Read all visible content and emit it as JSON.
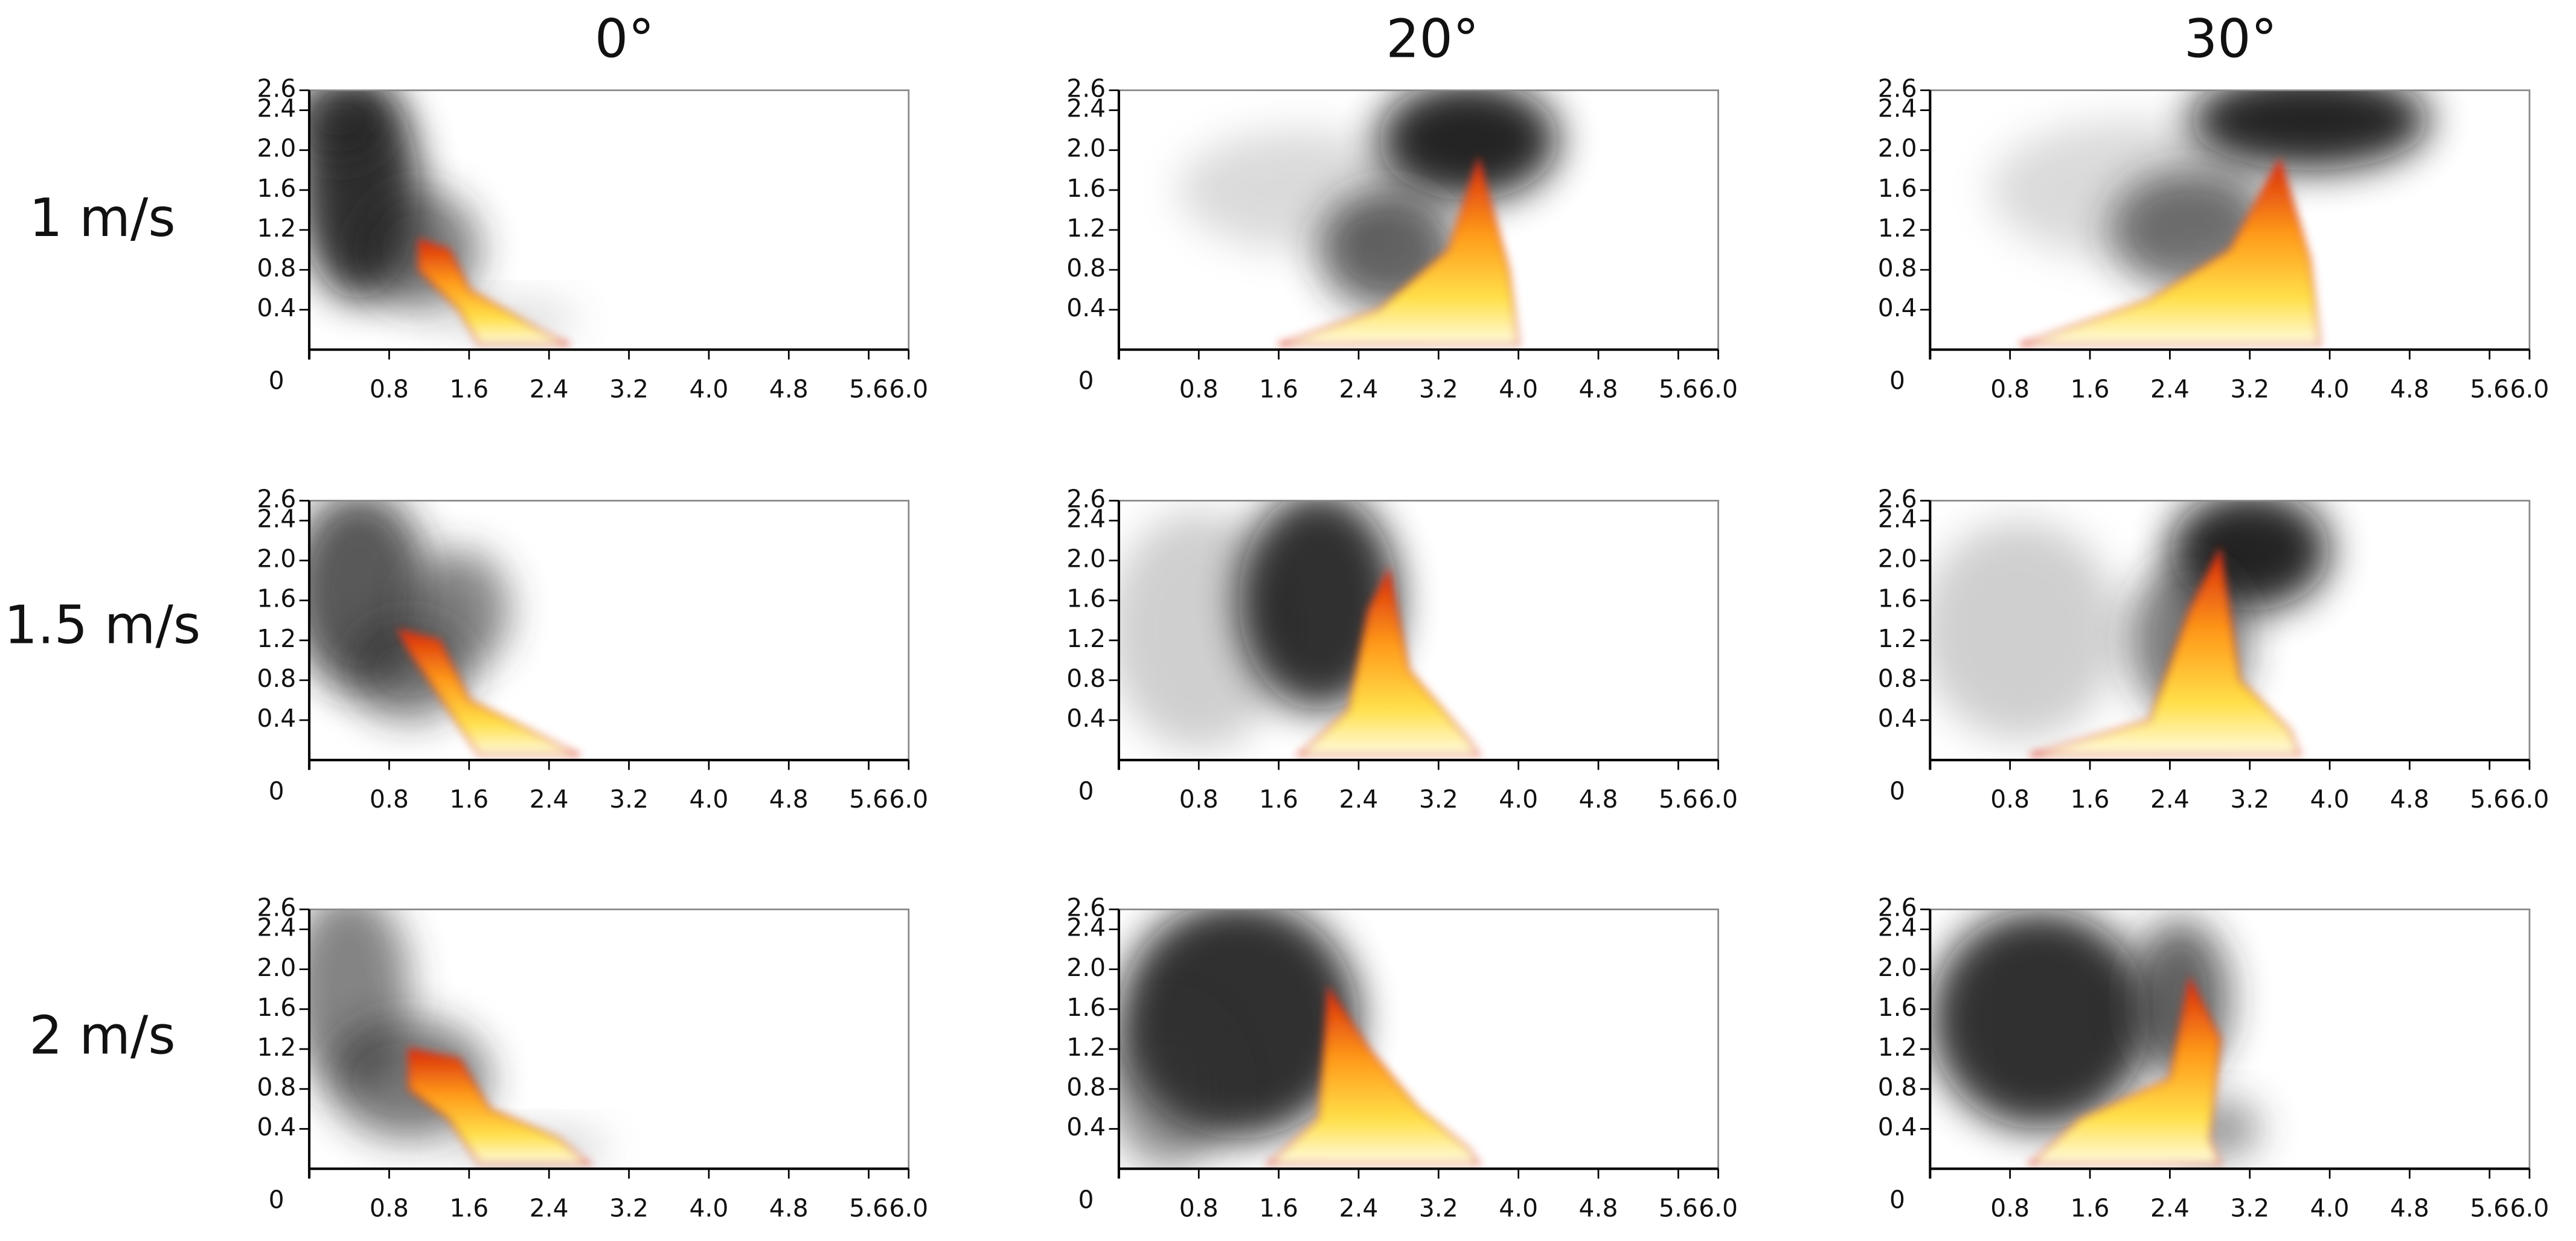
{
  "column_titles": [
    "0°",
    "20°",
    "30°"
  ],
  "row_labels": [
    "1 m/s",
    "1.5 m/s",
    "2 m/s"
  ],
  "axes": {
    "origin_label": "0",
    "xticks": [
      {
        "value": 0.8,
        "label": "0.8"
      },
      {
        "value": 1.6,
        "label": "1.6"
      },
      {
        "value": 2.4,
        "label": "2.4"
      },
      {
        "value": 3.2,
        "label": "3.2"
      },
      {
        "value": 4,
        "label": "4.0"
      },
      {
        "value": 4.8,
        "label": "4.8"
      },
      {
        "value": 5.6,
        "label": "5.6"
      },
      {
        "value": 6,
        "label": "6.0"
      }
    ],
    "yticks": [
      0.4,
      0.8,
      1.2,
      1.6,
      {
        "value": 2,
        "label": "2.0"
      },
      2.4,
      2.6
    ]
  }
}
